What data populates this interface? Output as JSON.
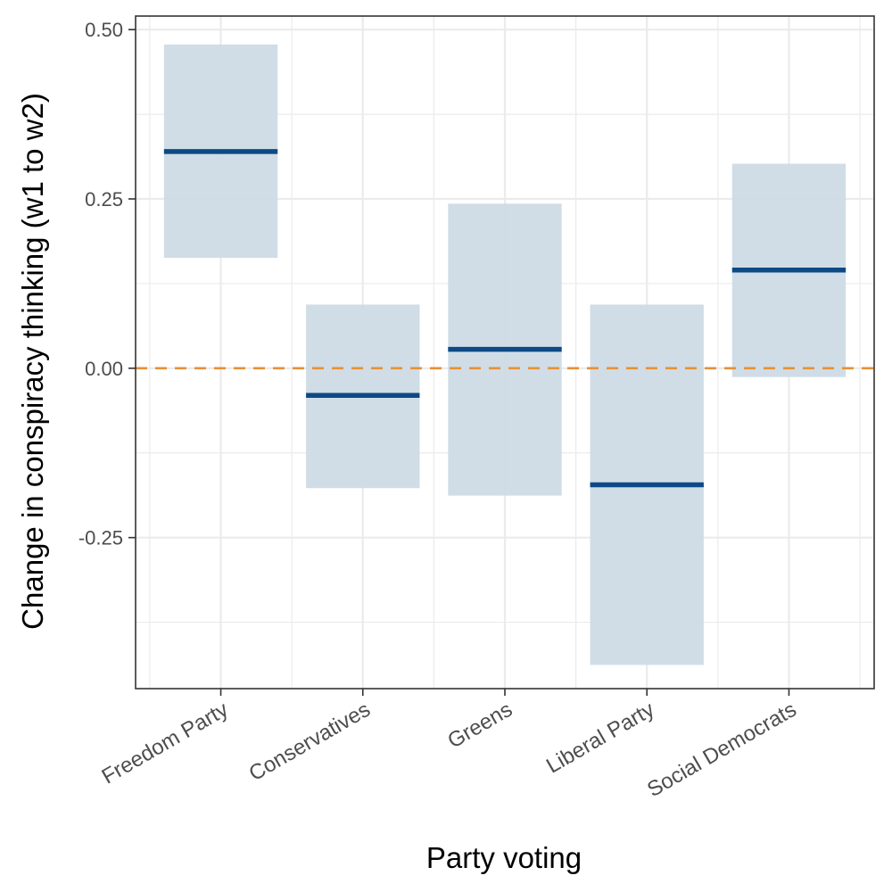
{
  "chart_data": {
    "type": "crossbar",
    "xlabel": "Party voting",
    "ylabel": "Change in conspiracy thinking (w1 to w2)",
    "categories": [
      "Freedom Party",
      "Conservatives",
      "Greens",
      "Liberal Party",
      "Social Democrats"
    ],
    "estimate": [
      0.32,
      -0.04,
      0.028,
      -0.172,
      0.145
    ],
    "ci_lower": [
      0.163,
      -0.177,
      -0.188,
      -0.438,
      -0.013
    ],
    "ci_upper": [
      0.478,
      0.094,
      0.243,
      0.094,
      0.302
    ],
    "ylim": [
      -0.473,
      0.52
    ],
    "y_ticks": [
      0.5,
      0.25,
      0.0,
      -0.25
    ],
    "y_tick_labels": [
      "0.50",
      "0.25",
      "0.00",
      "-0.25"
    ],
    "reference_line": {
      "y": 0,
      "style": "dashed",
      "color": "#e69138"
    },
    "grid": true,
    "colors": {
      "estimate": "#0d4a85",
      "interval": "#cddbe6",
      "panel_border": "#333333",
      "grid": "#ebebeb"
    }
  }
}
